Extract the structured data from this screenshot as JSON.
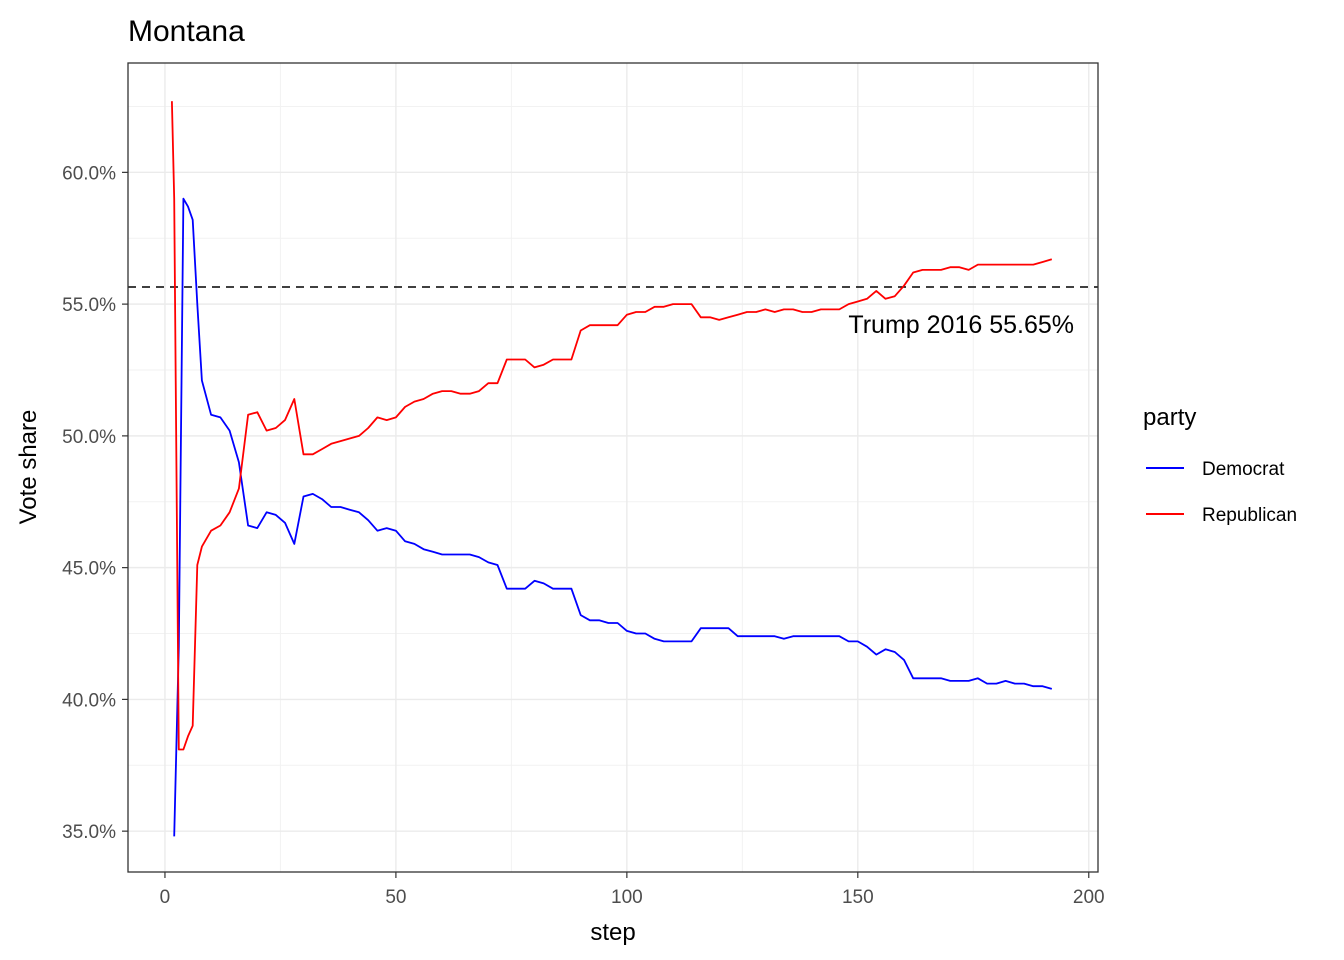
{
  "chart_data": {
    "type": "line",
    "title": "Montana",
    "xlabel": "step",
    "ylabel": "Vote share",
    "xlim": [
      -8,
      202
    ],
    "ylim": [
      0.3345,
      0.6415
    ],
    "x_ticks": [
      0,
      50,
      100,
      150,
      200
    ],
    "x_tick_labels": [
      "0",
      "50",
      "100",
      "150",
      "200"
    ],
    "y_ticks": [
      0.35,
      0.4,
      0.45,
      0.5,
      0.55,
      0.6
    ],
    "y_tick_labels": [
      "35.0%",
      "40.0%",
      "45.0%",
      "50.0%",
      "55.0%",
      "60.0%"
    ],
    "grid": true,
    "legend_title": "party",
    "legend_position": "right",
    "reference_line": {
      "y": 0.5565,
      "style": "dashed",
      "label": "Trump 2016 55.65%"
    },
    "series": [
      {
        "name": "Democrat",
        "color": "#0000ff",
        "points": [
          [
            2,
            0.348
          ],
          [
            3,
            0.42
          ],
          [
            4,
            0.59
          ],
          [
            5,
            0.587
          ],
          [
            6,
            0.582
          ],
          [
            7,
            0.55
          ],
          [
            8,
            0.521
          ],
          [
            10,
            0.508
          ],
          [
            12,
            0.507
          ],
          [
            14,
            0.502
          ],
          [
            16,
            0.49
          ],
          [
            18,
            0.466
          ],
          [
            20,
            0.465
          ],
          [
            22,
            0.471
          ],
          [
            24,
            0.47
          ],
          [
            26,
            0.467
          ],
          [
            28,
            0.459
          ],
          [
            30,
            0.477
          ],
          [
            32,
            0.478
          ],
          [
            34,
            0.476
          ],
          [
            36,
            0.473
          ],
          [
            38,
            0.473
          ],
          [
            40,
            0.472
          ],
          [
            42,
            0.471
          ],
          [
            44,
            0.468
          ],
          [
            46,
            0.464
          ],
          [
            48,
            0.465
          ],
          [
            50,
            0.464
          ],
          [
            52,
            0.46
          ],
          [
            54,
            0.459
          ],
          [
            56,
            0.457
          ],
          [
            58,
            0.456
          ],
          [
            60,
            0.455
          ],
          [
            62,
            0.455
          ],
          [
            64,
            0.455
          ],
          [
            66,
            0.455
          ],
          [
            68,
            0.454
          ],
          [
            70,
            0.452
          ],
          [
            72,
            0.451
          ],
          [
            74,
            0.442
          ],
          [
            76,
            0.442
          ],
          [
            78,
            0.442
          ],
          [
            80,
            0.445
          ],
          [
            82,
            0.444
          ],
          [
            84,
            0.442
          ],
          [
            86,
            0.442
          ],
          [
            88,
            0.442
          ],
          [
            90,
            0.432
          ],
          [
            92,
            0.43
          ],
          [
            94,
            0.43
          ],
          [
            96,
            0.429
          ],
          [
            98,
            0.429
          ],
          [
            100,
            0.426
          ],
          [
            102,
            0.425
          ],
          [
            104,
            0.425
          ],
          [
            106,
            0.423
          ],
          [
            108,
            0.422
          ],
          [
            110,
            0.422
          ],
          [
            112,
            0.422
          ],
          [
            114,
            0.422
          ],
          [
            116,
            0.427
          ],
          [
            118,
            0.427
          ],
          [
            120,
            0.427
          ],
          [
            122,
            0.427
          ],
          [
            124,
            0.424
          ],
          [
            126,
            0.424
          ],
          [
            128,
            0.424
          ],
          [
            130,
            0.424
          ],
          [
            132,
            0.424
          ],
          [
            134,
            0.423
          ],
          [
            136,
            0.424
          ],
          [
            138,
            0.424
          ],
          [
            140,
            0.424
          ],
          [
            142,
            0.424
          ],
          [
            144,
            0.424
          ],
          [
            146,
            0.424
          ],
          [
            148,
            0.422
          ],
          [
            150,
            0.422
          ],
          [
            152,
            0.42
          ],
          [
            154,
            0.417
          ],
          [
            156,
            0.419
          ],
          [
            158,
            0.418
          ],
          [
            160,
            0.415
          ],
          [
            162,
            0.408
          ],
          [
            164,
            0.408
          ],
          [
            166,
            0.408
          ],
          [
            168,
            0.408
          ],
          [
            170,
            0.407
          ],
          [
            172,
            0.407
          ],
          [
            174,
            0.407
          ],
          [
            176,
            0.408
          ],
          [
            178,
            0.406
          ],
          [
            180,
            0.406
          ],
          [
            182,
            0.407
          ],
          [
            184,
            0.406
          ],
          [
            186,
            0.406
          ],
          [
            188,
            0.405
          ],
          [
            190,
            0.405
          ],
          [
            192,
            0.404
          ]
        ]
      },
      {
        "name": "Republican",
        "color": "#ff0000",
        "points": [
          [
            1.5,
            0.627
          ],
          [
            2,
            0.59
          ],
          [
            3,
            0.381
          ],
          [
            4,
            0.381
          ],
          [
            5,
            0.386
          ],
          [
            6,
            0.39
          ],
          [
            7,
            0.451
          ],
          [
            8,
            0.458
          ],
          [
            10,
            0.464
          ],
          [
            12,
            0.466
          ],
          [
            14,
            0.471
          ],
          [
            16,
            0.48
          ],
          [
            18,
            0.508
          ],
          [
            20,
            0.509
          ],
          [
            22,
            0.502
          ],
          [
            24,
            0.503
          ],
          [
            26,
            0.506
          ],
          [
            28,
            0.514
          ],
          [
            30,
            0.493
          ],
          [
            32,
            0.493
          ],
          [
            34,
            0.495
          ],
          [
            36,
            0.497
          ],
          [
            38,
            0.498
          ],
          [
            40,
            0.499
          ],
          [
            42,
            0.5
          ],
          [
            44,
            0.503
          ],
          [
            46,
            0.507
          ],
          [
            48,
            0.506
          ],
          [
            50,
            0.507
          ],
          [
            52,
            0.511
          ],
          [
            54,
            0.513
          ],
          [
            56,
            0.514
          ],
          [
            58,
            0.516
          ],
          [
            60,
            0.517
          ],
          [
            62,
            0.517
          ],
          [
            64,
            0.516
          ],
          [
            66,
            0.516
          ],
          [
            68,
            0.517
          ],
          [
            70,
            0.52
          ],
          [
            72,
            0.52
          ],
          [
            74,
            0.529
          ],
          [
            76,
            0.529
          ],
          [
            78,
            0.529
          ],
          [
            80,
            0.526
          ],
          [
            82,
            0.527
          ],
          [
            84,
            0.529
          ],
          [
            86,
            0.529
          ],
          [
            88,
            0.529
          ],
          [
            90,
            0.54
          ],
          [
            92,
            0.542
          ],
          [
            94,
            0.542
          ],
          [
            96,
            0.542
          ],
          [
            98,
            0.542
          ],
          [
            100,
            0.546
          ],
          [
            102,
            0.547
          ],
          [
            104,
            0.547
          ],
          [
            106,
            0.549
          ],
          [
            108,
            0.549
          ],
          [
            110,
            0.55
          ],
          [
            112,
            0.55
          ],
          [
            114,
            0.55
          ],
          [
            116,
            0.545
          ],
          [
            118,
            0.545
          ],
          [
            120,
            0.544
          ],
          [
            122,
            0.545
          ],
          [
            124,
            0.546
          ],
          [
            126,
            0.547
          ],
          [
            128,
            0.547
          ],
          [
            130,
            0.548
          ],
          [
            132,
            0.547
          ],
          [
            134,
            0.548
          ],
          [
            136,
            0.548
          ],
          [
            138,
            0.547
          ],
          [
            140,
            0.547
          ],
          [
            142,
            0.548
          ],
          [
            144,
            0.548
          ],
          [
            146,
            0.548
          ],
          [
            148,
            0.55
          ],
          [
            150,
            0.551
          ],
          [
            152,
            0.552
          ],
          [
            154,
            0.555
          ],
          [
            156,
            0.552
          ],
          [
            158,
            0.553
          ],
          [
            160,
            0.557
          ],
          [
            162,
            0.562
          ],
          [
            164,
            0.563
          ],
          [
            166,
            0.563
          ],
          [
            168,
            0.563
          ],
          [
            170,
            0.564
          ],
          [
            172,
            0.564
          ],
          [
            174,
            0.563
          ],
          [
            176,
            0.565
          ],
          [
            178,
            0.565
          ],
          [
            180,
            0.565
          ],
          [
            182,
            0.565
          ],
          [
            184,
            0.565
          ],
          [
            186,
            0.565
          ],
          [
            188,
            0.565
          ],
          [
            190,
            0.566
          ],
          [
            192,
            0.567
          ]
        ]
      }
    ]
  }
}
